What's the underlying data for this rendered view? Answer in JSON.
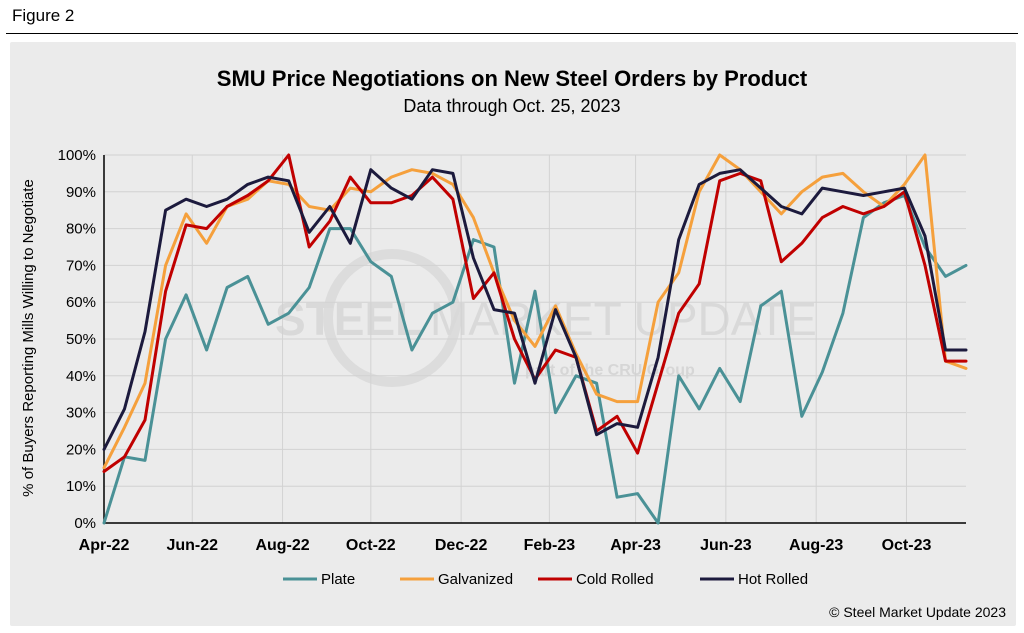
{
  "figure_label": "Figure 2",
  "watermark": {
    "brand_a": "STEEL",
    "brand_b": "MARKET UPDATE",
    "tagline": "part of the CRU Group"
  },
  "copyright": "© Steel Market Update 2023",
  "colors": {
    "Plate": "#4a9196",
    "Galvanized": "#f5a03c",
    "Cold Rolled": "#c00000",
    "Hot Rolled": "#1c1a3d"
  },
  "chart_data": {
    "type": "line",
    "title": "SMU Price Negotiations on New Steel Orders by Product",
    "subtitle": "Data through Oct. 25, 2023",
    "ylabel": "% of Buyers Reporting Mills Willing to Negotiate",
    "xlabel": "",
    "ylim": [
      0,
      100
    ],
    "yticks": [
      "0%",
      "10%",
      "20%",
      "30%",
      "40%",
      "50%",
      "60%",
      "70%",
      "80%",
      "90%",
      "100%"
    ],
    "xticks": [
      {
        "label": "Apr-22",
        "index": 0
      },
      {
        "label": "Jun-22",
        "index": 4.3
      },
      {
        "label": "Aug-22",
        "index": 8.7
      },
      {
        "label": "Oct-22",
        "index": 13.0
      },
      {
        "label": "Dec-22",
        "index": 17.4
      },
      {
        "label": "Feb-23",
        "index": 21.7
      },
      {
        "label": "Apr-23",
        "index": 25.9
      },
      {
        "label": "Jun-23",
        "index": 30.3
      },
      {
        "label": "Aug-23",
        "index": 34.7
      },
      {
        "label": "Oct-23",
        "index": 39.1
      }
    ],
    "legend_position": "bottom",
    "series": [
      {
        "name": "Plate",
        "values": [
          0,
          18,
          17,
          50,
          62,
          47,
          64,
          67,
          54,
          57,
          64,
          80,
          80,
          71,
          67,
          47,
          57,
          60,
          77,
          75,
          38,
          63,
          30,
          40,
          38,
          7,
          8,
          0,
          40,
          31,
          42,
          33,
          59,
          63,
          29,
          41,
          57,
          83,
          87,
          89,
          75,
          67,
          70
        ]
      },
      {
        "name": "Galvanized",
        "values": [
          15,
          26,
          38,
          70,
          84,
          76,
          86,
          88,
          93,
          92,
          86,
          85,
          91,
          90,
          94,
          96,
          95,
          92,
          83,
          68,
          55,
          48,
          59,
          46,
          35,
          33,
          33,
          60,
          68,
          90,
          100,
          96,
          90,
          84,
          90,
          94,
          95,
          90,
          86,
          92,
          100,
          44,
          42
        ]
      },
      {
        "name": "Cold Rolled",
        "values": [
          14,
          18,
          28,
          63,
          81,
          80,
          86,
          89,
          93,
          100,
          75,
          82,
          94,
          87,
          87,
          89,
          94,
          88,
          61,
          68,
          50,
          39,
          47,
          45,
          25,
          29,
          19,
          38,
          57,
          65,
          93,
          95,
          93,
          71,
          76,
          83,
          86,
          84,
          86,
          90,
          70,
          44,
          44
        ]
      },
      {
        "name": "Hot Rolled",
        "values": [
          20,
          31,
          52,
          85,
          88,
          86,
          88,
          92,
          94,
          93,
          79,
          86,
          76,
          96,
          91,
          88,
          96,
          95,
          72,
          58,
          57,
          38,
          58,
          45,
          24,
          27,
          26,
          45,
          77,
          92,
          95,
          96,
          91,
          86,
          84,
          91,
          90,
          89,
          90,
          91,
          78,
          47,
          47
        ]
      }
    ]
  }
}
